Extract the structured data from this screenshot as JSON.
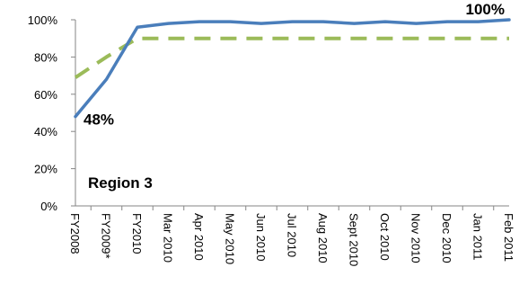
{
  "chart_data": {
    "type": "line",
    "title": "",
    "xlabel": "",
    "ylabel": "",
    "annotation": "Region 3",
    "categories": [
      "FY2008",
      "FY2009*",
      "FY2010",
      "Mar 2010",
      "Apr 2010",
      "May 2010",
      "Jun 2010",
      "Jul 2010",
      "Aug 2010",
      "Sept 2010",
      "Oct 2010",
      "Nov 2010",
      "Dec 2010",
      "Jan 2011",
      "Feb 2011"
    ],
    "series": [
      {
        "values": [
          48,
          68,
          96,
          98,
          99,
          99,
          98,
          99,
          99,
          98,
          99,
          98,
          99,
          99,
          100
        ],
        "color": "#4a7ebb",
        "style": "solid"
      },
      {
        "values": [
          69,
          80,
          90,
          90,
          90,
          90,
          90,
          90,
          90,
          90,
          90,
          90,
          90,
          90,
          90
        ],
        "color": "#9bbb59",
        "style": "dashed"
      }
    ],
    "data_labels": [
      {
        "text": "48%"
      },
      {
        "text": "100%"
      }
    ],
    "yticks": [
      "0%",
      "20%",
      "40%",
      "60%",
      "80%",
      "100%"
    ],
    "ylim": [
      0,
      100
    ],
    "grid": false,
    "legend": "none"
  }
}
